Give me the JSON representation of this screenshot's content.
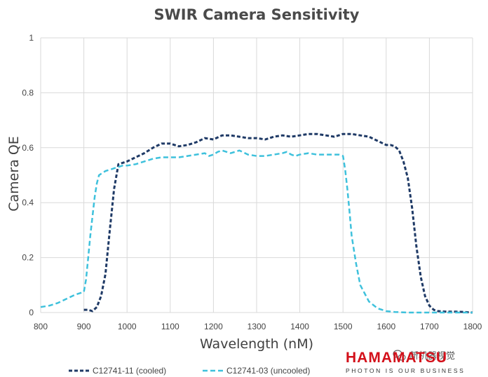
{
  "chart_data": {
    "type": "line",
    "title": "SWIR Camera Sensitivity",
    "xlabel": "Wavelength (nM)",
    "ylabel": "Camera QE",
    "xlim": [
      800,
      1800
    ],
    "ylim": [
      0,
      1
    ],
    "xticks": [
      "800",
      "900",
      "1000",
      "1100",
      "1200",
      "1300",
      "1400",
      "1500",
      "1600",
      "1700",
      "1800"
    ],
    "yticks": [
      "0",
      "0.2",
      "0.4",
      "0.6",
      "0.8",
      "1"
    ],
    "grid": "vertical and horizontal",
    "legend_position": "bottom",
    "series": [
      {
        "name": "C12741-11 (cooled)",
        "color": "#1f3a66",
        "style": "dashed",
        "x": [
          900,
          910,
          920,
          930,
          940,
          950,
          960,
          970,
          980,
          1000,
          1020,
          1040,
          1060,
          1080,
          1100,
          1120,
          1140,
          1160,
          1180,
          1200,
          1220,
          1240,
          1260,
          1280,
          1300,
          1320,
          1340,
          1360,
          1380,
          1400,
          1420,
          1440,
          1460,
          1480,
          1500,
          1520,
          1540,
          1560,
          1580,
          1600,
          1610,
          1620,
          1630,
          1640,
          1650,
          1660,
          1670,
          1680,
          1690,
          1700,
          1710,
          1720,
          1740,
          1760,
          1780,
          1800
        ],
        "y": [
          0.01,
          0.01,
          0.005,
          0.02,
          0.06,
          0.14,
          0.3,
          0.45,
          0.54,
          0.55,
          0.565,
          0.58,
          0.6,
          0.615,
          0.615,
          0.605,
          0.61,
          0.62,
          0.635,
          0.63,
          0.645,
          0.645,
          0.64,
          0.635,
          0.635,
          0.63,
          0.64,
          0.645,
          0.64,
          0.645,
          0.65,
          0.65,
          0.645,
          0.64,
          0.65,
          0.65,
          0.645,
          0.64,
          0.625,
          0.61,
          0.61,
          0.605,
          0.59,
          0.55,
          0.49,
          0.38,
          0.24,
          0.13,
          0.06,
          0.025,
          0.01,
          0.005,
          0.003,
          0.003,
          0.002,
          0.0
        ]
      },
      {
        "name": "C12741-03 (uncooled)",
        "color": "#3ec1dc",
        "style": "dashed",
        "x": [
          800,
          820,
          840,
          860,
          880,
          900,
          905,
          910,
          915,
          920,
          925,
          930,
          935,
          940,
          945,
          950,
          960,
          970,
          980,
          990,
          1000,
          1020,
          1040,
          1060,
          1080,
          1100,
          1120,
          1140,
          1160,
          1180,
          1190,
          1200,
          1210,
          1220,
          1230,
          1240,
          1250,
          1260,
          1280,
          1300,
          1320,
          1340,
          1360,
          1370,
          1380,
          1390,
          1400,
          1420,
          1440,
          1460,
          1480,
          1490,
          1500,
          1505,
          1510,
          1515,
          1520,
          1530,
          1540,
          1560,
          1580,
          1600,
          1620,
          1650,
          1700,
          1750,
          1800
        ],
        "y": [
          0.02,
          0.025,
          0.035,
          0.05,
          0.065,
          0.075,
          0.12,
          0.2,
          0.28,
          0.35,
          0.42,
          0.47,
          0.5,
          0.505,
          0.51,
          0.515,
          0.52,
          0.525,
          0.53,
          0.535,
          0.535,
          0.54,
          0.55,
          0.56,
          0.565,
          0.565,
          0.565,
          0.57,
          0.575,
          0.58,
          0.57,
          0.575,
          0.585,
          0.59,
          0.585,
          0.58,
          0.585,
          0.59,
          0.575,
          0.57,
          0.57,
          0.575,
          0.58,
          0.585,
          0.575,
          0.57,
          0.575,
          0.58,
          0.575,
          0.575,
          0.575,
          0.575,
          0.57,
          0.52,
          0.45,
          0.37,
          0.28,
          0.18,
          0.1,
          0.04,
          0.015,
          0.005,
          0.002,
          0.0,
          0.0,
          0.0,
          0.0
        ]
      }
    ]
  },
  "brand": {
    "name": "HAMAMATSU",
    "tagline": "PHOTON IS OUR BUSINESS",
    "color": "#d3101a"
  },
  "watermark": {
    "text": "新机器视觉",
    "icon": "wechat-icon"
  }
}
